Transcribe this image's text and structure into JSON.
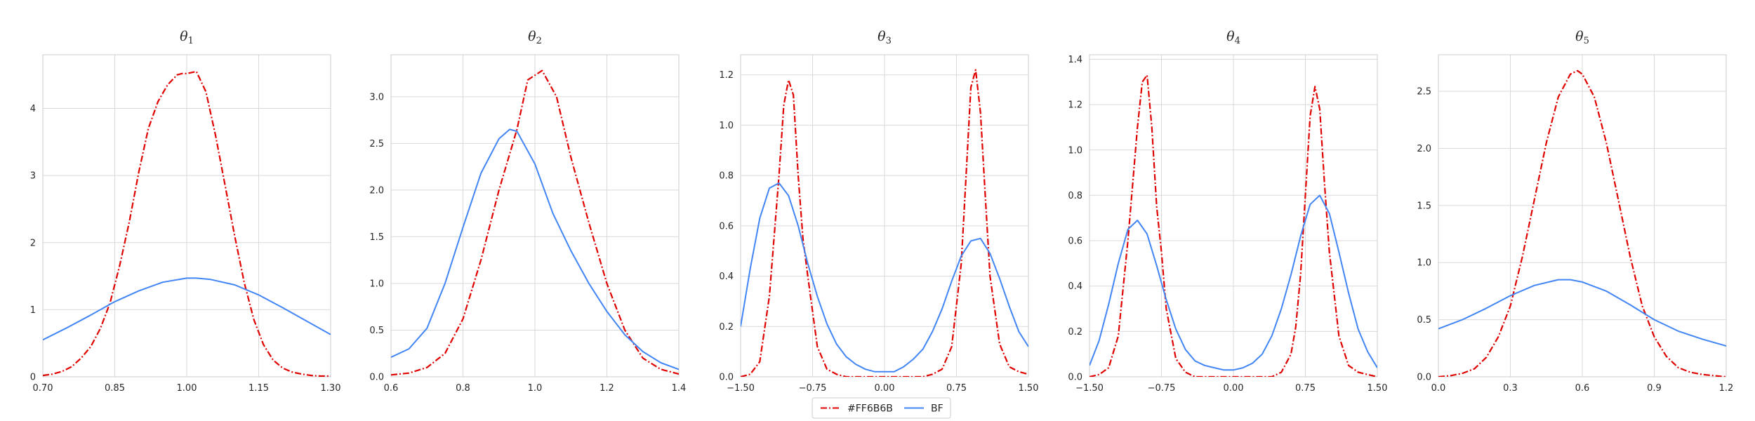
{
  "chart_data": {
    "type": "line",
    "colors": {
      "red": "#e00000",
      "blue": "#4285f4",
      "grid": "#d9d9d9",
      "frame": "#cccccc"
    },
    "legend": {
      "placement": "bottom-center",
      "entries": [
        {
          "label": "#FF6B6B",
          "color": "#e00000",
          "style": "dash-dot"
        },
        {
          "label": "BF",
          "color": "#4285f4",
          "style": "solid"
        }
      ]
    },
    "panels": [
      {
        "title": "θ1",
        "title_base": "θ",
        "title_sub": "1",
        "xlim": [
          0.7,
          1.3
        ],
        "ylim": [
          0,
          4.8
        ],
        "xticks": [
          0.7,
          0.85,
          1.0,
          1.15,
          1.3
        ],
        "xtick_labels": [
          "0.70",
          "0.85",
          "1.00",
          "1.15",
          "1.30"
        ],
        "yticks": [
          0,
          1,
          2,
          3,
          4
        ],
        "ytick_labels": [
          "0",
          "1",
          "2",
          "3",
          "4"
        ],
        "series": [
          {
            "label": "#FF6B6B",
            "x": [
              0.7,
              0.72,
              0.74,
              0.76,
              0.78,
              0.8,
              0.82,
              0.84,
              0.86,
              0.88,
              0.9,
              0.92,
              0.94,
              0.96,
              0.98,
              0.99,
              1.0,
              1.02,
              1.04,
              1.06,
              1.08,
              1.1,
              1.12,
              1.14,
              1.16,
              1.18,
              1.2,
              1.22,
              1.24,
              1.26,
              1.28,
              1.3
            ],
            "y": [
              0.02,
              0.04,
              0.08,
              0.15,
              0.28,
              0.45,
              0.72,
              1.1,
              1.65,
              2.3,
              3.05,
              3.7,
              4.1,
              4.35,
              4.5,
              4.52,
              4.52,
              4.55,
              4.25,
              3.6,
              2.85,
              2.1,
              1.4,
              0.85,
              0.48,
              0.25,
              0.13,
              0.07,
              0.04,
              0.02,
              0.01,
              0.01
            ]
          },
          {
            "label": "BF",
            "x": [
              0.7,
              0.75,
              0.8,
              0.85,
              0.9,
              0.95,
              1.0,
              1.02,
              1.05,
              1.1,
              1.15,
              1.2,
              1.25,
              1.3
            ],
            "y": [
              0.55,
              0.73,
              0.92,
              1.12,
              1.28,
              1.41,
              1.47,
              1.47,
              1.45,
              1.37,
              1.22,
              1.03,
              0.83,
              0.63
            ]
          }
        ]
      },
      {
        "title": "θ2",
        "title_base": "θ",
        "title_sub": "2",
        "xlim": [
          0.6,
          1.4
        ],
        "ylim": [
          0,
          3.45
        ],
        "xticks": [
          0.6,
          0.8,
          1.0,
          1.2,
          1.4
        ],
        "xtick_labels": [
          "0.6",
          "0.8",
          "1.0",
          "1.2",
          "1.4"
        ],
        "yticks": [
          0,
          0.5,
          1.0,
          1.5,
          2.0,
          2.5,
          3.0
        ],
        "ytick_labels": [
          "0.0",
          "0.5",
          "1.0",
          "1.5",
          "2.0",
          "2.5",
          "3.0"
        ],
        "series": [
          {
            "label": "#FF6B6B",
            "x": [
              0.6,
              0.65,
              0.7,
              0.75,
              0.8,
              0.85,
              0.9,
              0.95,
              0.98,
              1.02,
              1.06,
              1.1,
              1.15,
              1.2,
              1.25,
              1.3,
              1.35,
              1.4
            ],
            "y": [
              0.02,
              0.04,
              0.1,
              0.25,
              0.62,
              1.25,
              2.0,
              2.65,
              3.18,
              3.28,
              3.0,
              2.35,
              1.65,
              1.0,
              0.5,
              0.2,
              0.08,
              0.03
            ]
          },
          {
            "label": "BF",
            "x": [
              0.6,
              0.65,
              0.7,
              0.75,
              0.8,
              0.85,
              0.9,
              0.93,
              0.95,
              1.0,
              1.05,
              1.1,
              1.15,
              1.2,
              1.25,
              1.3,
              1.35,
              1.4
            ],
            "y": [
              0.21,
              0.3,
              0.52,
              1.0,
              1.6,
              2.18,
              2.55,
              2.65,
              2.63,
              2.28,
              1.75,
              1.35,
              1.0,
              0.7,
              0.45,
              0.27,
              0.15,
              0.08
            ]
          }
        ]
      },
      {
        "title": "θ3",
        "title_base": "θ",
        "title_sub": "3",
        "xlim": [
          -1.5,
          1.5
        ],
        "ylim": [
          0,
          1.28
        ],
        "xticks": [
          -1.5,
          -0.75,
          0.0,
          0.75,
          1.5
        ],
        "xtick_labels": [
          "−1.50",
          "−0.75",
          "0.00",
          "0.75",
          "1.50"
        ],
        "yticks": [
          0,
          0.2,
          0.4,
          0.6,
          0.8,
          1.0,
          1.2
        ],
        "ytick_labels": [
          "0.0",
          "0.2",
          "0.4",
          "0.6",
          "0.8",
          "1.0",
          "1.2"
        ],
        "series": [
          {
            "label": "#FF6B6B",
            "x": [
              -1.5,
              -1.4,
              -1.3,
              -1.2,
              -1.1,
              -1.05,
              -1.0,
              -0.95,
              -0.9,
              -0.85,
              -0.8,
              -0.7,
              -0.6,
              -0.5,
              -0.4,
              0.0,
              0.4,
              0.5,
              0.6,
              0.7,
              0.8,
              0.85,
              0.9,
              0.95,
              1.0,
              1.05,
              1.1,
              1.2,
              1.3,
              1.4,
              1.5
            ],
            "y": [
              0.0,
              0.01,
              0.06,
              0.32,
              0.8,
              1.08,
              1.18,
              1.12,
              0.8,
              0.55,
              0.4,
              0.12,
              0.03,
              0.01,
              0.0,
              0.0,
              0.0,
              0.01,
              0.03,
              0.12,
              0.45,
              0.8,
              1.15,
              1.22,
              1.05,
              0.72,
              0.4,
              0.13,
              0.04,
              0.02,
              0.01
            ]
          },
          {
            "label": "BF",
            "x": [
              -1.5,
              -1.4,
              -1.3,
              -1.2,
              -1.1,
              -1.0,
              -0.9,
              -0.8,
              -0.7,
              -0.6,
              -0.5,
              -0.4,
              -0.3,
              -0.2,
              -0.1,
              0.0,
              0.1,
              0.2,
              0.3,
              0.4,
              0.5,
              0.6,
              0.7,
              0.8,
              0.9,
              1.0,
              1.1,
              1.2,
              1.3,
              1.4,
              1.5
            ],
            "y": [
              0.2,
              0.43,
              0.63,
              0.75,
              0.77,
              0.72,
              0.6,
              0.45,
              0.32,
              0.21,
              0.13,
              0.08,
              0.05,
              0.03,
              0.02,
              0.02,
              0.02,
              0.04,
              0.07,
              0.11,
              0.18,
              0.27,
              0.38,
              0.48,
              0.54,
              0.55,
              0.49,
              0.39,
              0.28,
              0.18,
              0.12
            ]
          }
        ]
      },
      {
        "title": "θ4",
        "title_base": "θ",
        "title_sub": "4",
        "xlim": [
          -1.5,
          1.5
        ],
        "ylim": [
          0,
          1.42
        ],
        "xticks": [
          -1.5,
          -0.75,
          0.0,
          0.75,
          1.5
        ],
        "xtick_labels": [
          "−1.50",
          "−0.75",
          "0.00",
          "0.75",
          "1.50"
        ],
        "yticks": [
          0,
          0.2,
          0.4,
          0.6,
          0.8,
          1.0,
          1.2,
          1.4
        ],
        "ytick_labels": [
          "0.0",
          "0.2",
          "0.4",
          "0.6",
          "0.8",
          "1.0",
          "1.2",
          "1.4"
        ],
        "series": [
          {
            "label": "#FF6B6B",
            "x": [
              -1.5,
              -1.4,
              -1.3,
              -1.2,
              -1.1,
              -1.0,
              -0.95,
              -0.9,
              -0.85,
              -0.8,
              -0.75,
              -0.7,
              -0.6,
              -0.5,
              -0.4,
              0.0,
              0.4,
              0.5,
              0.6,
              0.65,
              0.7,
              0.75,
              0.8,
              0.85,
              0.9,
              0.95,
              1.0,
              1.1,
              1.2,
              1.3,
              1.4,
              1.5
            ],
            "y": [
              0.0,
              0.01,
              0.04,
              0.18,
              0.6,
              1.1,
              1.3,
              1.33,
              1.1,
              0.75,
              0.55,
              0.3,
              0.08,
              0.02,
              0.0,
              0.0,
              0.0,
              0.02,
              0.1,
              0.22,
              0.45,
              0.8,
              1.15,
              1.28,
              1.18,
              0.85,
              0.55,
              0.18,
              0.05,
              0.02,
              0.01,
              0.0
            ]
          },
          {
            "label": "BF",
            "x": [
              -1.5,
              -1.4,
              -1.3,
              -1.2,
              -1.1,
              -1.0,
              -0.9,
              -0.8,
              -0.7,
              -0.6,
              -0.5,
              -0.4,
              -0.3,
              -0.2,
              -0.1,
              0.0,
              0.1,
              0.2,
              0.3,
              0.4,
              0.5,
              0.6,
              0.7,
              0.8,
              0.9,
              1.0,
              1.1,
              1.2,
              1.3,
              1.4,
              1.5
            ],
            "y": [
              0.05,
              0.16,
              0.32,
              0.5,
              0.65,
              0.69,
              0.63,
              0.49,
              0.34,
              0.21,
              0.12,
              0.07,
              0.05,
              0.04,
              0.03,
              0.03,
              0.04,
              0.06,
              0.1,
              0.18,
              0.3,
              0.45,
              0.62,
              0.76,
              0.8,
              0.72,
              0.55,
              0.37,
              0.21,
              0.11,
              0.04
            ]
          }
        ]
      },
      {
        "title": "θ5",
        "title_base": "θ",
        "title_sub": "5",
        "xlim": [
          0.0,
          1.2
        ],
        "ylim": [
          0,
          2.82
        ],
        "xticks": [
          0.0,
          0.3,
          0.6,
          0.9,
          1.2
        ],
        "xtick_labels": [
          "0.0",
          "0.3",
          "0.6",
          "0.9",
          "1.2"
        ],
        "yticks": [
          0,
          0.5,
          1.0,
          1.5,
          2.0,
          2.5
        ],
        "ytick_labels": [
          "0.0",
          "0.5",
          "1.0",
          "1.5",
          "2.0",
          "2.5"
        ],
        "series": [
          {
            "label": "#FF6B6B",
            "x": [
              0.0,
              0.05,
              0.1,
              0.15,
              0.2,
              0.25,
              0.3,
              0.35,
              0.4,
              0.45,
              0.5,
              0.55,
              0.58,
              0.6,
              0.65,
              0.7,
              0.75,
              0.8,
              0.85,
              0.9,
              0.95,
              1.0,
              1.05,
              1.1,
              1.15,
              1.2
            ],
            "y": [
              0.0,
              0.01,
              0.03,
              0.07,
              0.17,
              0.35,
              0.62,
              1.05,
              1.55,
              2.05,
              2.45,
              2.65,
              2.68,
              2.65,
              2.45,
              2.05,
              1.55,
              1.05,
              0.62,
              0.35,
              0.18,
              0.08,
              0.04,
              0.02,
              0.01,
              0.0
            ]
          },
          {
            "label": "BF",
            "x": [
              0.0,
              0.1,
              0.2,
              0.3,
              0.4,
              0.5,
              0.55,
              0.6,
              0.7,
              0.8,
              0.9,
              1.0,
              1.1,
              1.2
            ],
            "y": [
              0.42,
              0.5,
              0.6,
              0.71,
              0.8,
              0.85,
              0.85,
              0.83,
              0.75,
              0.63,
              0.5,
              0.4,
              0.33,
              0.27
            ]
          }
        ]
      }
    ]
  }
}
